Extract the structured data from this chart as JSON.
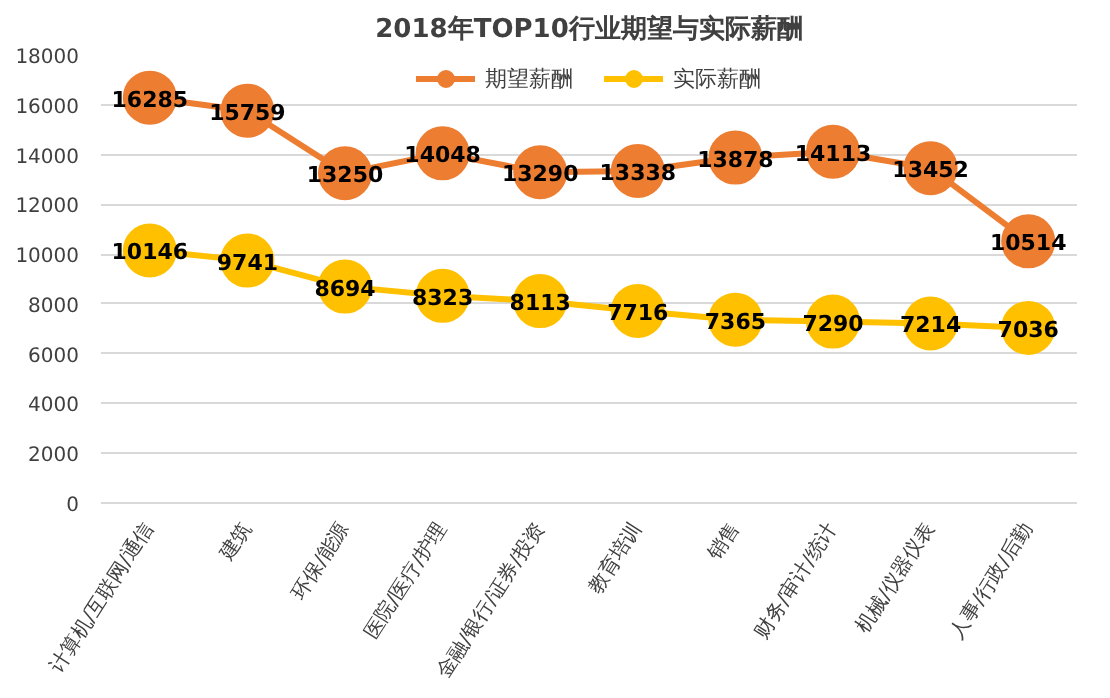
{
  "chart_data": {
    "type": "line",
    "title": "2018年TOP10行业期望与实际薪酬",
    "categories": [
      "计算机/互联网/通信",
      "建筑",
      "环保/能源",
      "医院/医疗/护理",
      "金融/银行/证券/投资",
      "教育培训",
      "销售",
      "财务/审计/统计",
      "机械/仪器仪表",
      "人事/行政/后勤"
    ],
    "series": [
      {
        "name": "期望薪酬",
        "color": "#ed7d31",
        "values": [
          16285,
          15759,
          13250,
          14048,
          13290,
          13338,
          13878,
          14113,
          13452,
          10514
        ]
      },
      {
        "name": "实际薪酬",
        "color": "#ffc000",
        "values": [
          10146,
          9741,
          8694,
          8323,
          8113,
          7716,
          7365,
          7290,
          7214,
          7036
        ]
      }
    ],
    "ylim": [
      0,
      18000
    ],
    "yticks": [
      0,
      2000,
      4000,
      6000,
      8000,
      10000,
      12000,
      14000,
      16000,
      18000
    ],
    "grid": "y",
    "legend": "top",
    "marker": "circle",
    "line_style": "solid",
    "data_labels": true
  }
}
